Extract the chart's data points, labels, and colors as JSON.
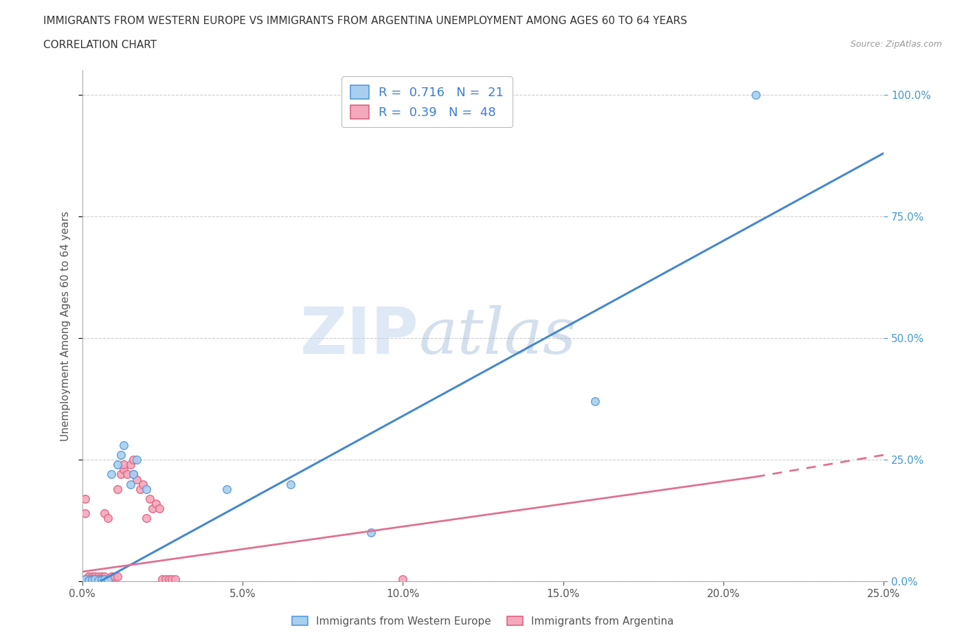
{
  "title_line1": "IMMIGRANTS FROM WESTERN EUROPE VS IMMIGRANTS FROM ARGENTINA UNEMPLOYMENT AMONG AGES 60 TO 64 YEARS",
  "title_line2": "CORRELATION CHART",
  "source": "Source: ZipAtlas.com",
  "ylabel": "Unemployment Among Ages 60 to 64 years",
  "watermark_zip": "ZIP",
  "watermark_atlas": "atlas",
  "blue_R": 0.716,
  "blue_N": 21,
  "pink_R": 0.39,
  "pink_N": 48,
  "blue_scatter_color": "#A8CFEE",
  "pink_scatter_color": "#F4A8BC",
  "blue_edge_color": "#5599DD",
  "pink_edge_color": "#E06080",
  "blue_line_color": "#4488CC",
  "pink_line_color": "#E07090",
  "xlim": [
    0,
    0.25
  ],
  "ylim": [
    0,
    1.05
  ],
  "x_ticks": [
    0.0,
    0.05,
    0.1,
    0.15,
    0.2,
    0.25
  ],
  "y_ticks": [
    0.0,
    0.25,
    0.5,
    0.75,
    1.0
  ],
  "blue_line_x0": 0.0,
  "blue_line_y0": -0.02,
  "blue_line_x1": 0.25,
  "blue_line_y1": 0.88,
  "pink_line_x0": 0.0,
  "pink_line_y0": 0.02,
  "pink_line_x1_solid": 0.21,
  "pink_line_y1_solid": 0.215,
  "pink_line_x1_dash": 0.25,
  "pink_line_y1_dash": 0.26,
  "blue_scatter_x": [
    0.001,
    0.002,
    0.003,
    0.004,
    0.005,
    0.006,
    0.007,
    0.008,
    0.009,
    0.011,
    0.012,
    0.013,
    0.015,
    0.016,
    0.017,
    0.02,
    0.045,
    0.065,
    0.09,
    0.16,
    0.21
  ],
  "blue_scatter_y": [
    0.005,
    0.002,
    0.003,
    0.004,
    0.002,
    0.003,
    0.005,
    0.003,
    0.22,
    0.24,
    0.26,
    0.28,
    0.2,
    0.22,
    0.25,
    0.19,
    0.19,
    0.2,
    0.1,
    0.37,
    1.0
  ],
  "pink_scatter_x": [
    0.001,
    0.001,
    0.002,
    0.002,
    0.002,
    0.003,
    0.003,
    0.004,
    0.004,
    0.005,
    0.005,
    0.006,
    0.006,
    0.007,
    0.007,
    0.008,
    0.009,
    0.01,
    0.011,
    0.011,
    0.012,
    0.013,
    0.013,
    0.014,
    0.015,
    0.016,
    0.016,
    0.017,
    0.018,
    0.019,
    0.02,
    0.021,
    0.022,
    0.023,
    0.024,
    0.025,
    0.026,
    0.027,
    0.028,
    0.029,
    0.001,
    0.002,
    0.003,
    0.004,
    0.005,
    0.006,
    0.007,
    0.1
  ],
  "pink_scatter_y": [
    0.14,
    0.17,
    0.01,
    0.01,
    0.005,
    0.01,
    0.005,
    0.01,
    0.005,
    0.01,
    0.005,
    0.01,
    0.005,
    0.01,
    0.14,
    0.13,
    0.01,
    0.01,
    0.01,
    0.19,
    0.22,
    0.23,
    0.24,
    0.22,
    0.24,
    0.25,
    0.22,
    0.21,
    0.19,
    0.2,
    0.13,
    0.17,
    0.15,
    0.16,
    0.15,
    0.005,
    0.005,
    0.005,
    0.005,
    0.005,
    0.005,
    0.005,
    0.005,
    0.005,
    0.005,
    0.005,
    0.005,
    0.005
  ]
}
